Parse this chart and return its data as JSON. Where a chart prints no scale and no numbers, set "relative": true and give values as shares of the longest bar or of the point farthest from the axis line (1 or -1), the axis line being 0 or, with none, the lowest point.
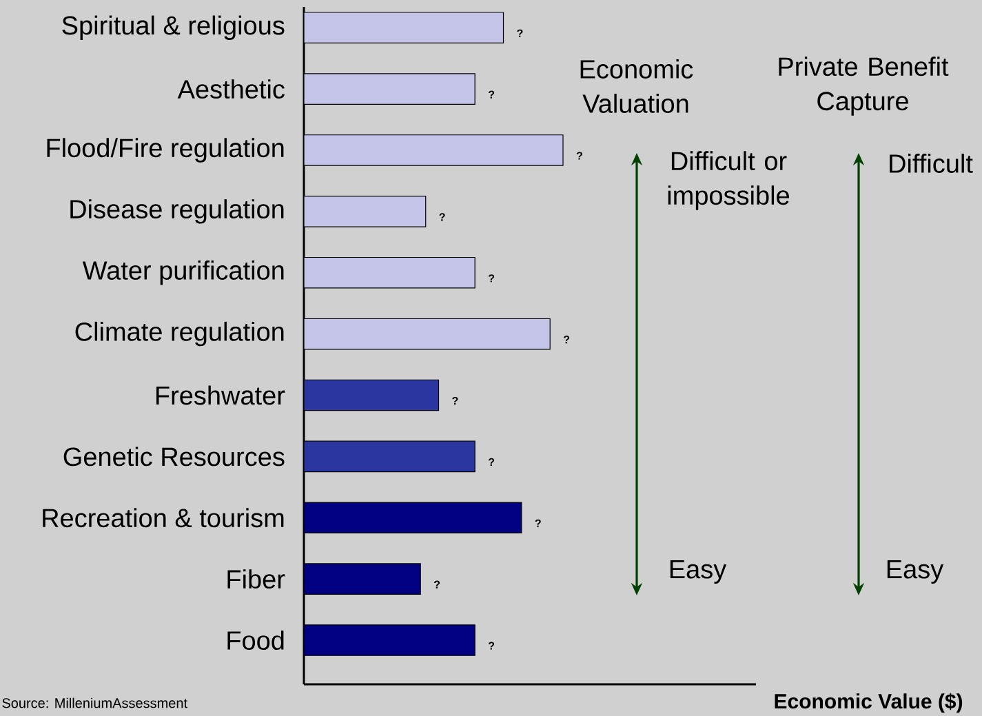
{
  "chart_data": {
    "type": "bar",
    "orientation": "horizontal",
    "relative": true,
    "categories": [
      "Spiritual & religious",
      "Aesthetic",
      "Flood/Fire regulation",
      "Disease regulation",
      "Water purification",
      "Climate regulation",
      "Freshwater",
      "Genetic Resources",
      "Recreation & tourism",
      "Fiber",
      "Food"
    ],
    "values": [
      0.77,
      0.66,
      1,
      0.47,
      0.66,
      0.95,
      0.52,
      0.66,
      0.84,
      0.45,
      0.66
    ],
    "colors": [
      "#c4c4e8",
      "#c4c4e8",
      "#c4c4e8",
      "#c4c4e8",
      "#c4c4e8",
      "#c4c4e8",
      "#2c36a0",
      "#2c36a0",
      "#000080",
      "#000080",
      "#000080"
    ],
    "annotations": [
      "Economic Valuation",
      "Private Benefit Capture",
      "Difficult or impossible",
      "Difficult",
      "Easy",
      "Easy",
      "Source: MilleniumAssessment",
      "**Economic Value ($)**",
      {
        "text": "?",
        "x": 0.77,
        "y": "Spiritual & religious"
      },
      {
        "text": "?",
        "x": 0.66,
        "y": "Aesthetic"
      },
      {
        "text": "?",
        "x": 1,
        "y": "Flood/Fire regulation"
      },
      {
        "text": "?",
        "x": 0.47,
        "y": "Disease regulation"
      },
      {
        "text": "?",
        "x": 0.66,
        "y": "Water purification"
      },
      {
        "text": "?",
        "x": 0.95,
        "y": "Climate regulation"
      },
      {
        "text": "?",
        "x": 0.52,
        "y": "Freshwater"
      },
      {
        "text": "?",
        "x": 0.66,
        "y": "Genetic Resources"
      },
      {
        "text": "?",
        "x": 0.84,
        "y": "Recreation & tourism"
      },
      {
        "text": "?",
        "x": 0.45,
        "y": "Fiber"
      },
      {
        "text": "?",
        "x": 0.66,
        "y": "Food"
      }
    ],
    "grid": false
  }
}
